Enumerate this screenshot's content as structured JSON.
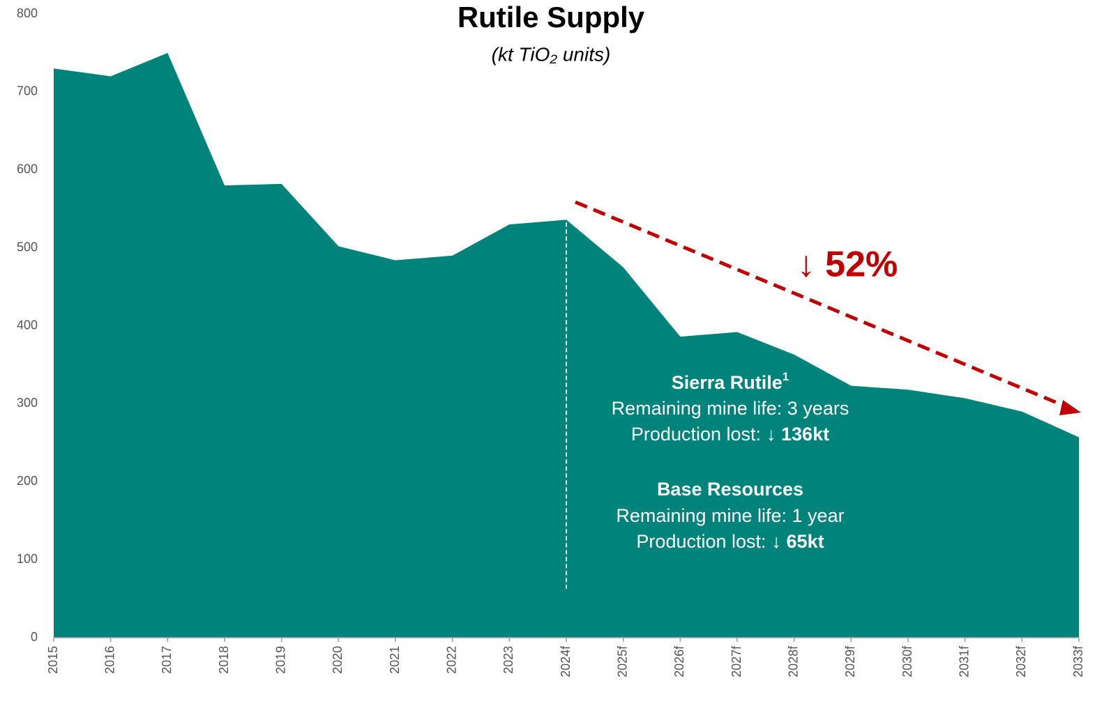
{
  "chart_data": {
    "type": "area",
    "title": "Rutile Supply",
    "subtitle": "(kt TiO₂ units)",
    "categories": [
      "2015",
      "2016",
      "2017",
      "2018",
      "2019",
      "2020",
      "2021",
      "2022",
      "2023",
      "2024f",
      "2025f",
      "2026f",
      "2027f",
      "2028f",
      "2029f",
      "2030f",
      "2031f",
      "2032f",
      "2033f"
    ],
    "values": [
      730,
      720,
      750,
      580,
      582,
      502,
      484,
      490,
      530,
      536,
      475,
      386,
      392,
      363,
      323,
      318,
      307,
      290,
      257
    ],
    "color": "#00837b",
    "ylim": [
      0,
      800
    ],
    "yticks": [
      0,
      100,
      200,
      300,
      400,
      500,
      600,
      700,
      800
    ],
    "grid": false,
    "trend_label": "↓ 52%",
    "annotations": [
      {
        "title": "Sierra Rutile",
        "footnote": "1",
        "lines": [
          {
            "normal": "Remaining mine life: 3 years",
            "bold": ""
          },
          {
            "normal": "Production lost:",
            "bold": "↓ 136kt"
          }
        ]
      },
      {
        "title": "Base Resources",
        "lines": [
          {
            "normal": "Remaining mine life: 1 year",
            "bold": ""
          },
          {
            "normal": "Production lost:",
            "bold": "↓ 65kt"
          }
        ]
      }
    ]
  }
}
